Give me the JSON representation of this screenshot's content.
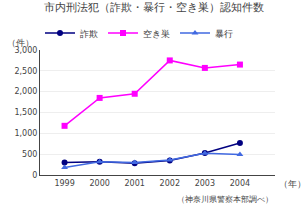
{
  "chart_data": {
    "type": "line",
    "title": "市内刑法犯（詐欺・暴行・空き巣）認知件数",
    "ylabel": "（件）",
    "xlabel": "（年）",
    "annotations": [
      "（神奈川県警察本部調べ）"
    ],
    "x": [
      1999,
      2000,
      2001,
      2002,
      2003,
      2004
    ],
    "series": [
      {
        "name": "詐欺",
        "color": "#000080",
        "marker": "circle",
        "values": [
          300,
          320,
          280,
          350,
          530,
          770
        ]
      },
      {
        "name": "空き巣",
        "color": "#FF00FF",
        "marker": "square",
        "values": [
          1180,
          1850,
          1950,
          2750,
          2570,
          2650
        ]
      },
      {
        "name": "暴行",
        "color": "#4169E1",
        "marker": "triangle-up",
        "values": [
          180,
          320,
          300,
          360,
          520,
          490
        ]
      }
    ],
    "xlim": [
      1998.3,
      2005.0
    ],
    "xticks": [
      1999,
      2000,
      2001,
      2002,
      2003,
      2004
    ],
    "ylim": [
      0,
      3000
    ],
    "yticks": [
      0,
      500,
      {
        "value": 1000,
        "label": "1,000"
      },
      {
        "value": 1500,
        "label": "1,500"
      },
      {
        "value": 2000,
        "label": "2,000"
      },
      {
        "value": 2500,
        "label": "2,500"
      },
      {
        "value": 3000,
        "label": "3,000"
      }
    ],
    "grid": true,
    "legend": "top"
  }
}
